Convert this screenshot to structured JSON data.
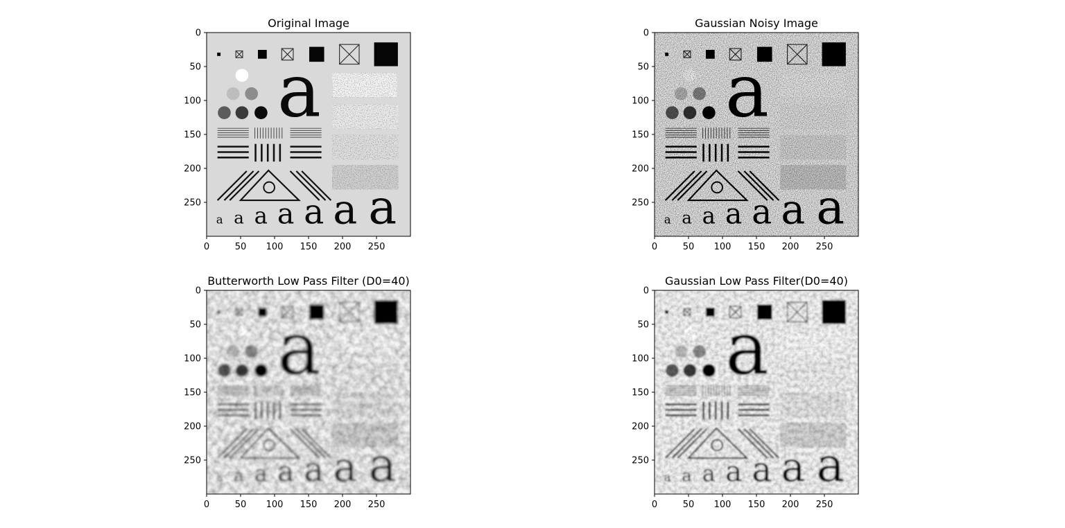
{
  "figure": {
    "background": "#ffffff"
  },
  "chart_data": [
    {
      "type": "heatmap",
      "title": "Original Image",
      "variant": "clean",
      "xlim": [
        0,
        300
      ],
      "ylim": [
        300,
        0
      ],
      "xticks": [
        0,
        50,
        100,
        150,
        200,
        250
      ],
      "yticks": [
        0,
        50,
        100,
        150,
        200,
        250
      ],
      "colormap": "gray"
    },
    {
      "type": "heatmap",
      "title": "Gaussian Noisy Image",
      "variant": "noisy",
      "xlim": [
        0,
        300
      ],
      "ylim": [
        300,
        0
      ],
      "xticks": [
        0,
        50,
        100,
        150,
        200,
        250
      ],
      "yticks": [
        0,
        50,
        100,
        150,
        200,
        250
      ],
      "colormap": "gray"
    },
    {
      "type": "heatmap",
      "title": "Butterworth Low Pass Filter (D0=40)",
      "variant": "butterworth",
      "xlim": [
        0,
        300
      ],
      "ylim": [
        300,
        0
      ],
      "xticks": [
        0,
        50,
        100,
        150,
        200,
        250
      ],
      "yticks": [
        0,
        50,
        100,
        150,
        200,
        250
      ],
      "colormap": "gray"
    },
    {
      "type": "heatmap",
      "title": "Gaussian Low Pass Filter(D0=40)",
      "variant": "gaussian",
      "xlim": [
        0,
        300
      ],
      "ylim": [
        300,
        0
      ],
      "xticks": [
        0,
        50,
        100,
        150,
        200,
        250
      ],
      "yticks": [
        0,
        50,
        100,
        150,
        200,
        250
      ],
      "colormap": "gray"
    }
  ]
}
